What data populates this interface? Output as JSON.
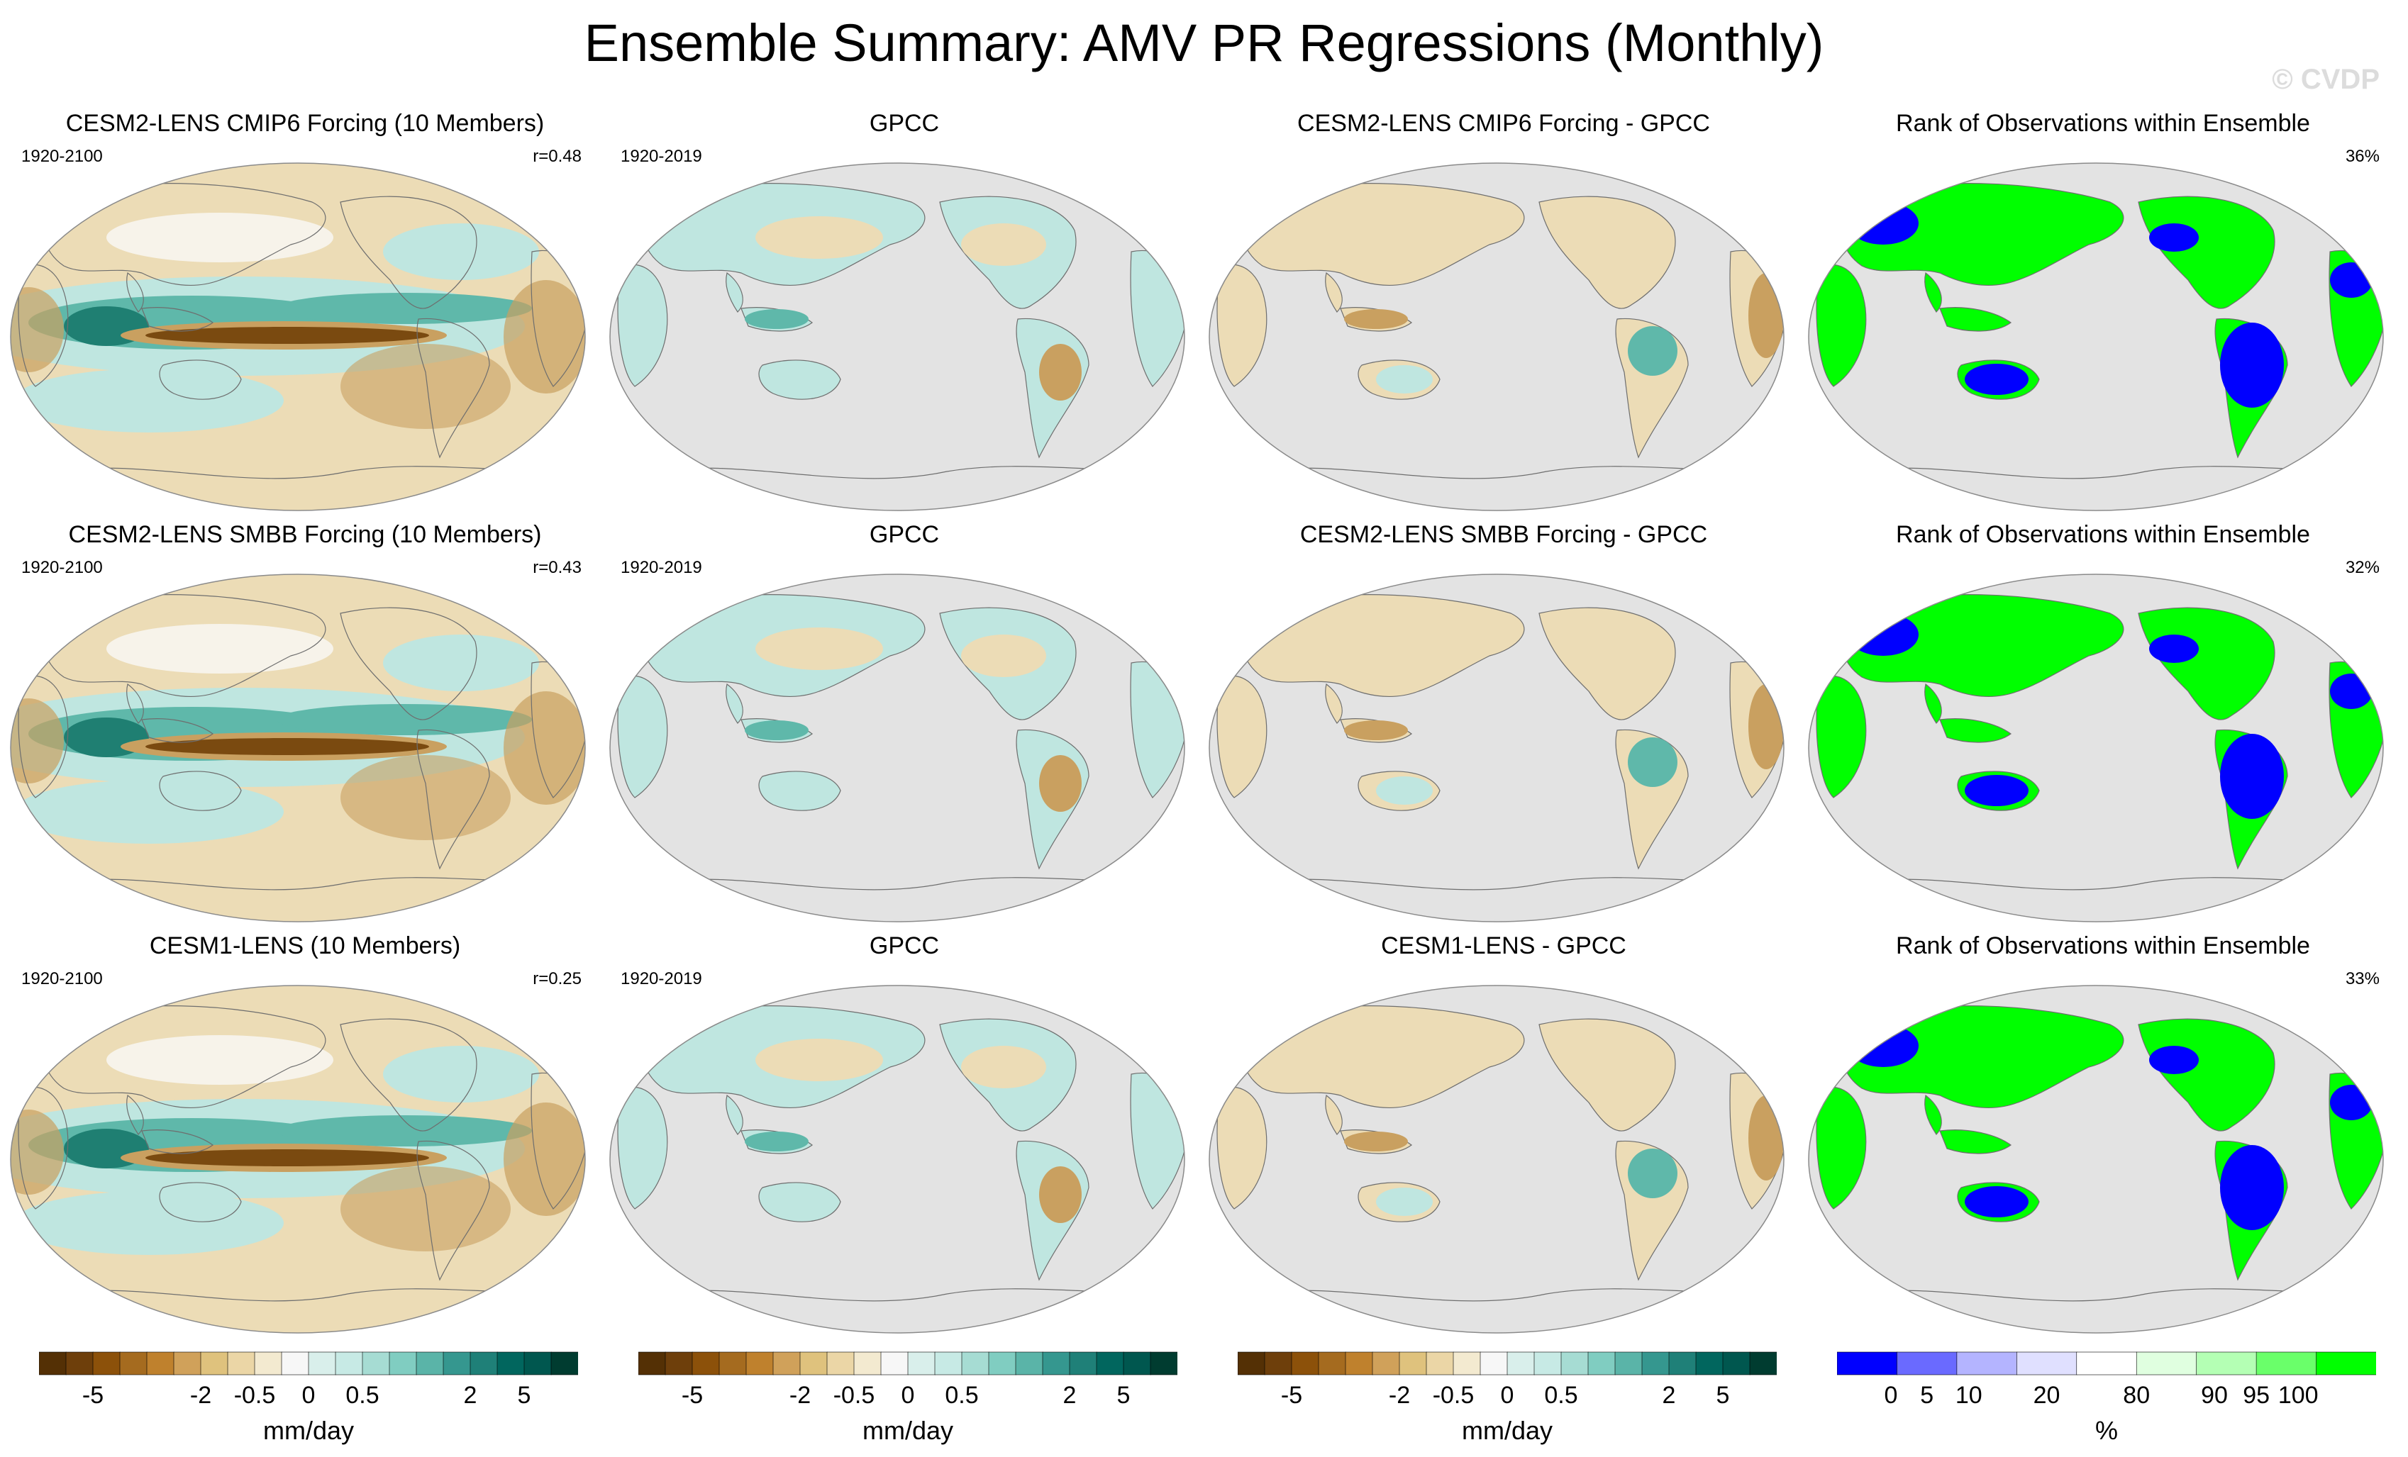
{
  "figure": {
    "title": "Ensemble Summary: AMV PR Regressions (Monthly)",
    "watermark": "© CVDP"
  },
  "colors": {
    "land_gray": "#e3e3e3",
    "coast": "#6e6e6e",
    "brown_strong": "#7a4a10",
    "brown_mid": "#c9a060",
    "brown_light": "#ecdcb6",
    "neutral": "#f7f3ea",
    "teal_light": "#bfe6e0",
    "teal_mid": "#5fb8aa",
    "teal_strong": "#1f7f72",
    "rank_blue": "#0000ff",
    "rank_green": "#00ff00"
  },
  "chart_data": [
    {
      "type": "heatmap",
      "panel": "r1c1",
      "title": "CESM2-LENS CMIP6 Forcing (10 Members)",
      "years": "1920-2100",
      "stat": "r=0.48",
      "style": "model"
    },
    {
      "type": "heatmap",
      "panel": "r1c2",
      "title": "GPCC",
      "years": "1920-2019",
      "stat": "",
      "style": "obs"
    },
    {
      "type": "heatmap",
      "panel": "r1c3",
      "title": "CESM2-LENS CMIP6 Forcing - GPCC",
      "years": "",
      "stat": "",
      "style": "diff"
    },
    {
      "type": "heatmap",
      "panel": "r1c4",
      "title": "Rank of Observations within Ensemble",
      "years": "",
      "stat": "36%",
      "style": "rank"
    },
    {
      "type": "heatmap",
      "panel": "r2c1",
      "title": "CESM2-LENS SMBB Forcing (10 Members)",
      "years": "1920-2100",
      "stat": "r=0.43",
      "style": "model"
    },
    {
      "type": "heatmap",
      "panel": "r2c2",
      "title": "GPCC",
      "years": "1920-2019",
      "stat": "",
      "style": "obs"
    },
    {
      "type": "heatmap",
      "panel": "r2c3",
      "title": "CESM2-LENS SMBB Forcing - GPCC",
      "years": "",
      "stat": "",
      "style": "diff"
    },
    {
      "type": "heatmap",
      "panel": "r2c4",
      "title": "Rank of Observations within Ensemble",
      "years": "",
      "stat": "32%",
      "style": "rank"
    },
    {
      "type": "heatmap",
      "panel": "r3c1",
      "title": "CESM1-LENS (10 Members)",
      "years": "1920-2100",
      "stat": "r=0.25",
      "style": "model"
    },
    {
      "type": "heatmap",
      "panel": "r3c2",
      "title": "GPCC",
      "years": "1920-2019",
      "stat": "",
      "style": "obs"
    },
    {
      "type": "heatmap",
      "panel": "r3c3",
      "title": "CESM1-LENS - GPCC",
      "years": "",
      "stat": "",
      "style": "diff"
    },
    {
      "type": "heatmap",
      "panel": "r3c4",
      "title": "Rank of Observations within Ensemble",
      "years": "",
      "stat": "33%",
      "style": "rank"
    }
  ],
  "colorbars": {
    "precip": {
      "unit": "mm/day",
      "ticks": [
        "-5",
        "-2",
        "-0.5",
        "0",
        "0.5",
        "2",
        "5"
      ],
      "colors": [
        "#543005",
        "#6e3f0b",
        "#8c510a",
        "#a56b1f",
        "#bf812d",
        "#d0a15a",
        "#dfc27d",
        "#ebd6a6",
        "#f3ead0",
        "#f7f7f7",
        "#d9efeb",
        "#c7eae5",
        "#a6dcd3",
        "#80cdc1",
        "#5ab4a8",
        "#35978f",
        "#1f8078",
        "#01665e",
        "#00574f",
        "#003c30"
      ]
    },
    "rank": {
      "unit": "%",
      "ticks": [
        "0",
        "5",
        "10",
        "20",
        "80",
        "90",
        "95",
        "100"
      ],
      "colors": [
        "#0000ff",
        "#6a6aff",
        "#b4b4ff",
        "#e0e0ff",
        "#ffffff",
        "#e0ffe0",
        "#b4ffb4",
        "#6aff6a",
        "#00ff00"
      ]
    }
  }
}
